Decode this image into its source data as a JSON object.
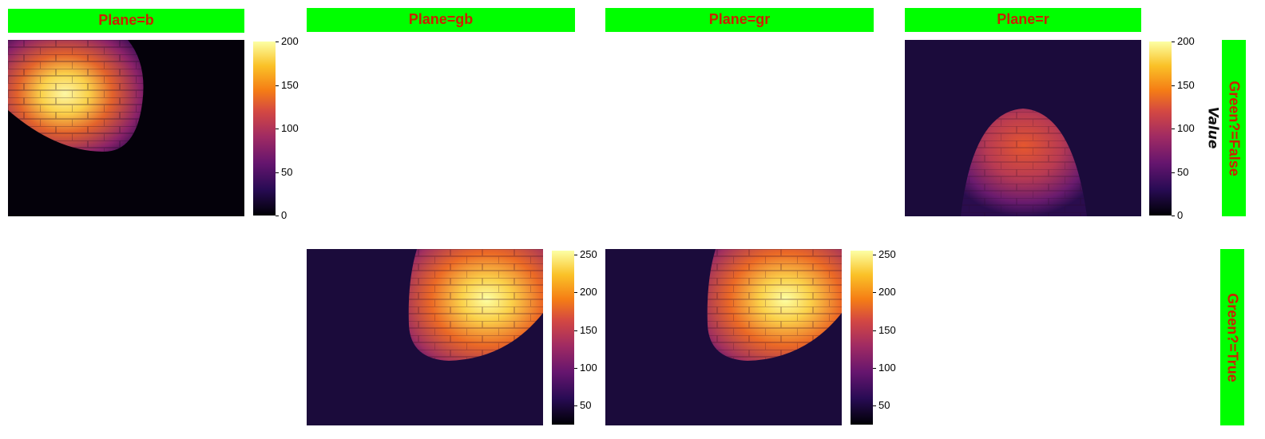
{
  "colors": {
    "header_bg": "#00ff00",
    "header_text": "#cc2200",
    "colormap": "inferno"
  },
  "columns": [
    "Plane=b",
    "Plane=gb",
    "Plane=gr",
    "Plane=r"
  ],
  "rows": [
    "Green?=False",
    "Green?=True"
  ],
  "colorbar_label": "Value",
  "chart_data": {
    "type": "heatmap",
    "layout": "facet grid (rows: Green?, cols: Plane)",
    "panels": [
      {
        "row": "Green?=False",
        "col": "Plane=b",
        "present": true,
        "colorbar": {
          "range": [
            0,
            200
          ],
          "ticks": [
            0,
            50,
            100,
            150,
            200
          ]
        },
        "description_of_content": "bright spotlight top-left over brick wall, dark elsewhere"
      },
      {
        "row": "Green?=False",
        "col": "Plane=gb",
        "present": false
      },
      {
        "row": "Green?=False",
        "col": "Plane=gr",
        "present": false
      },
      {
        "row": "Green?=False",
        "col": "Plane=r",
        "present": true,
        "colorbar": {
          "range": [
            0,
            200
          ],
          "ticks": [
            0,
            50,
            100,
            150,
            200
          ]
        }
      },
      {
        "row": "Green?=True",
        "col": "Plane=b",
        "present": false
      },
      {
        "row": "Green?=True",
        "col": "Plane=gb",
        "present": true,
        "colorbar": {
          "range": [
            25,
            255
          ],
          "ticks": [
            50,
            100,
            150,
            200,
            250
          ]
        }
      },
      {
        "row": "Green?=True",
        "col": "Plane=gr",
        "present": true,
        "colorbar": {
          "range": [
            25,
            255
          ],
          "ticks": [
            50,
            100,
            150,
            200,
            250
          ]
        }
      },
      {
        "row": "Green?=True",
        "col": "Plane=r",
        "present": false
      }
    ]
  }
}
